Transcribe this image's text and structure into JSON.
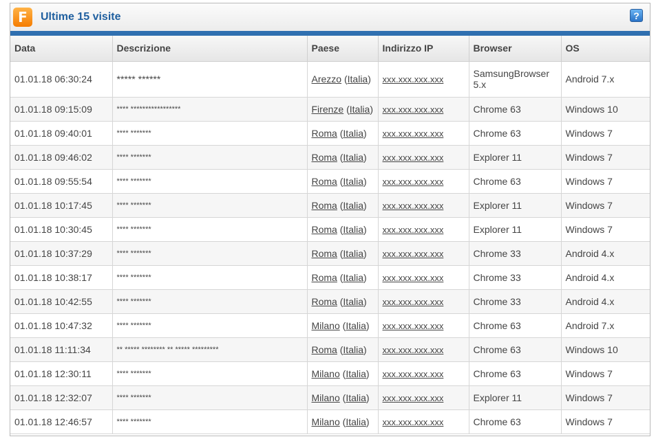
{
  "header": {
    "title": "Ultime 15 visite",
    "logo_letter": "F",
    "help_label": "?"
  },
  "columns": [
    "Data",
    "Descrizione",
    "Paese",
    "Indirizzo IP",
    "Browser",
    "OS"
  ],
  "rows": [
    {
      "date": "01.01.18  06:30:24",
      "desc": "***** ******",
      "city": "Arezzo",
      "country": "Italia",
      "ip": "xxx.xxx.xxx.xxx",
      "browser": "SamsungBrowser 5.x",
      "os": "Android 7.x"
    },
    {
      "date": "01.01.18  09:15:09",
      "desc": "**** *****************",
      "city": "Firenze",
      "country": "Italia",
      "ip": "xxx.xxx.xxx.xxx",
      "browser": "Chrome 63",
      "os": "Windows 10"
    },
    {
      "date": "01.01.18  09:40:01",
      "desc": "**** *******",
      "city": "Roma",
      "country": "Italia",
      "ip": "xxx.xxx.xxx.xxx",
      "browser": "Chrome 63",
      "os": "Windows 7"
    },
    {
      "date": "01.01.18  09:46:02",
      "desc": "**** *******",
      "city": "Roma",
      "country": "Italia",
      "ip": "xxx.xxx.xxx.xxx",
      "browser": "Explorer 11",
      "os": "Windows 7"
    },
    {
      "date": "01.01.18  09:55:54",
      "desc": "**** *******",
      "city": "Roma",
      "country": "Italia",
      "ip": "xxx.xxx.xxx.xxx",
      "browser": "Chrome 63",
      "os": "Windows 7"
    },
    {
      "date": "01.01.18  10:17:45",
      "desc": "**** *******",
      "city": "Roma",
      "country": "Italia",
      "ip": "xxx.xxx.xxx.xxx",
      "browser": "Explorer 11",
      "os": "Windows 7"
    },
    {
      "date": "01.01.18  10:30:45",
      "desc": "**** *******",
      "city": "Roma",
      "country": "Italia",
      "ip": "xxx.xxx.xxx.xxx",
      "browser": "Explorer 11",
      "os": "Windows 7"
    },
    {
      "date": "01.01.18  10:37:29",
      "desc": "**** *******",
      "city": "Roma",
      "country": "Italia",
      "ip": "xxx.xxx.xxx.xxx",
      "browser": "Chrome 33",
      "os": "Android 4.x"
    },
    {
      "date": "01.01.18  10:38:17",
      "desc": "**** *******",
      "city": "Roma",
      "country": "Italia",
      "ip": "xxx.xxx.xxx.xxx",
      "browser": "Chrome 33",
      "os": "Android 4.x"
    },
    {
      "date": "01.01.18  10:42:55",
      "desc": "**** *******",
      "city": "Roma",
      "country": "Italia",
      "ip": "xxx.xxx.xxx.xxx",
      "browser": "Chrome 33",
      "os": "Android 4.x"
    },
    {
      "date": "01.01.18  10:47:32",
      "desc": "**** *******",
      "city": "Milano",
      "country": "Italia",
      "ip": "xxx.xxx.xxx.xxx",
      "browser": "Chrome 63",
      "os": "Android 7.x"
    },
    {
      "date": "01.01.18  11:11:34",
      "desc": "** ***** ******** ** ***** *********",
      "city": "Roma",
      "country": "Italia",
      "ip": "xxx.xxx.xxx.xxx",
      "browser": "Chrome 63",
      "os": "Windows 10"
    },
    {
      "date": "01.01.18  12:30:11",
      "desc": "**** *******",
      "city": "Milano",
      "country": "Italia",
      "ip": "xxx.xxx.xxx.xxx",
      "browser": "Chrome 63",
      "os": "Windows 7"
    },
    {
      "date": "01.01.18  12:32:07",
      "desc": "**** *******",
      "city": "Milano",
      "country": "Italia",
      "ip": "xxx.xxx.xxx.xxx",
      "browser": "Explorer 11",
      "os": "Windows 7"
    },
    {
      "date": "01.01.18  12:46:57",
      "desc": "**** *******",
      "city": "Milano",
      "country": "Italia",
      "ip": "xxx.xxx.xxx.xxx",
      "browser": "Chrome 63",
      "os": "Windows 7"
    }
  ],
  "colors": {
    "title": "#1f5f9f",
    "accent_bar": "#2f6fb0",
    "logo": "#f57c00"
  },
  "icons": {
    "logo": "f-logo-icon",
    "help": "help-icon"
  }
}
